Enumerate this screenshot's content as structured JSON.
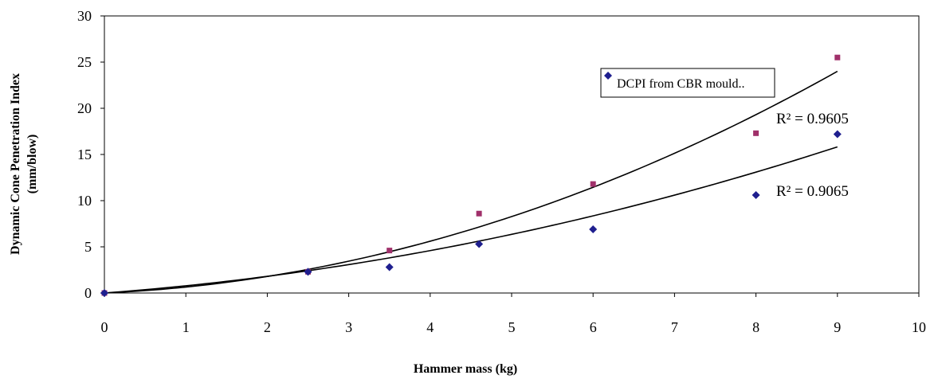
{
  "chart_data": {
    "type": "scatter",
    "xlabel": "Hammer mass (kg)",
    "ylabel_line1": "Dynamic Cone Penetration  Index",
    "ylabel_line2": "(mm/blow)",
    "xlim": [
      0,
      10
    ],
    "ylim": [
      0,
      30
    ],
    "x_ticks": [
      "0",
      "1",
      "2",
      "3",
      "4",
      "5",
      "6",
      "7",
      "8",
      "9",
      "10"
    ],
    "y_ticks": [
      "0",
      "5",
      "10",
      "15",
      "20",
      "25",
      "30"
    ],
    "grid": false,
    "legend_position": "top-right",
    "series": [
      {
        "name": "DCPI from CBR mould..",
        "marker": "diamond",
        "color": "#1f1f8f",
        "points": [
          [
            0,
            0
          ],
          [
            2.5,
            2.3
          ],
          [
            3.5,
            2.8
          ],
          [
            4.6,
            5.3
          ],
          [
            6,
            6.9
          ],
          [
            8,
            10.6
          ],
          [
            9,
            17.2
          ]
        ],
        "trendline": {
          "type": "polynomial",
          "a": 0.122,
          "b": 0.66,
          "r2_label": "R² = 0.9065"
        }
      },
      {
        "name": "",
        "marker": "square",
        "color": "#a0306a",
        "points": [
          [
            0,
            0
          ],
          [
            2.5,
            2.3
          ],
          [
            3.5,
            4.6
          ],
          [
            4.6,
            8.6
          ],
          [
            6,
            11.8
          ],
          [
            8,
            17.3
          ],
          [
            9,
            25.5
          ]
        ],
        "trendline": {
          "type": "polynomial",
          "a": 0.253,
          "b": 0.39,
          "r2_label": "R² = 0.9605"
        }
      }
    ]
  }
}
